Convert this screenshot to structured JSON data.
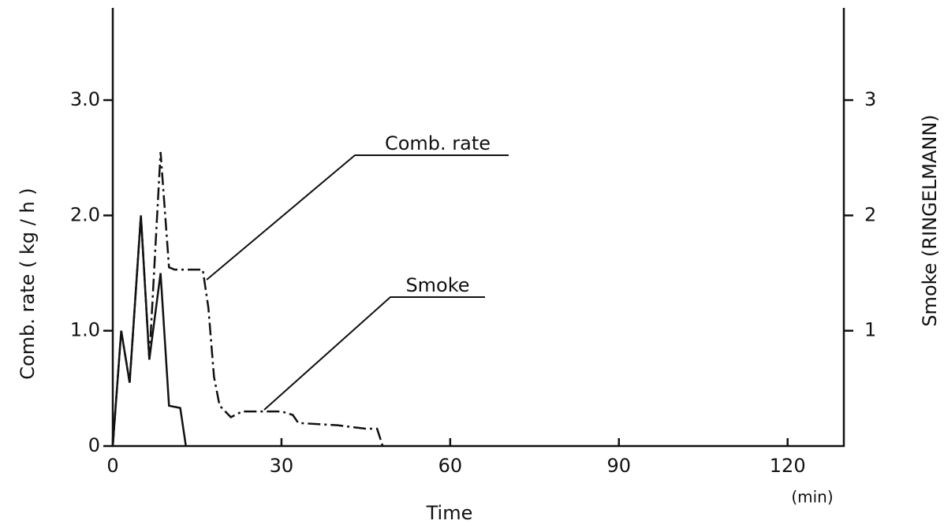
{
  "chart_data": {
    "type": "line",
    "x_label": "Time",
    "x_unit": "(min)",
    "y_label": "Comb. rate ( kg / h )",
    "y2_label": "Smoke  (RINGELMANN)",
    "xlim": [
      0,
      130
    ],
    "xticks": [
      0,
      30,
      60,
      90,
      120
    ],
    "ylim": [
      0,
      3.8
    ],
    "yticks": [
      0,
      {
        "value": 1,
        "label": "1.0"
      },
      {
        "value": 2,
        "label": "2.0"
      },
      {
        "value": 3,
        "label": "3.0"
      }
    ],
    "y2lim": [
      0,
      3.8
    ],
    "y2ticks": [
      1,
      2,
      3
    ],
    "series": [
      {
        "name": "Comb. rate",
        "color": "#111111",
        "dash": "dash-dot",
        "x": [
          0,
          1.5,
          3,
          5,
          6.5,
          8.5,
          10,
          11,
          16,
          17,
          18,
          19,
          21,
          23,
          30,
          32,
          33,
          40,
          45,
          47,
          48
        ],
        "values": [
          0,
          1.0,
          0.55,
          2.0,
          0.75,
          2.55,
          1.55,
          1.53,
          1.53,
          1.2,
          0.6,
          0.35,
          0.25,
          0.3,
          0.3,
          0.27,
          0.2,
          0.18,
          0.15,
          0.15,
          0
        ]
      },
      {
        "name": "Smoke",
        "color": "#111111",
        "axis": "y2",
        "dash": "solid",
        "x": [
          0,
          1.5,
          3,
          5,
          6.5,
          8.5,
          10,
          12,
          13
        ],
        "values": [
          0,
          1.0,
          0.55,
          2.0,
          0.75,
          1.5,
          0.35,
          0.33,
          0
        ]
      }
    ]
  }
}
